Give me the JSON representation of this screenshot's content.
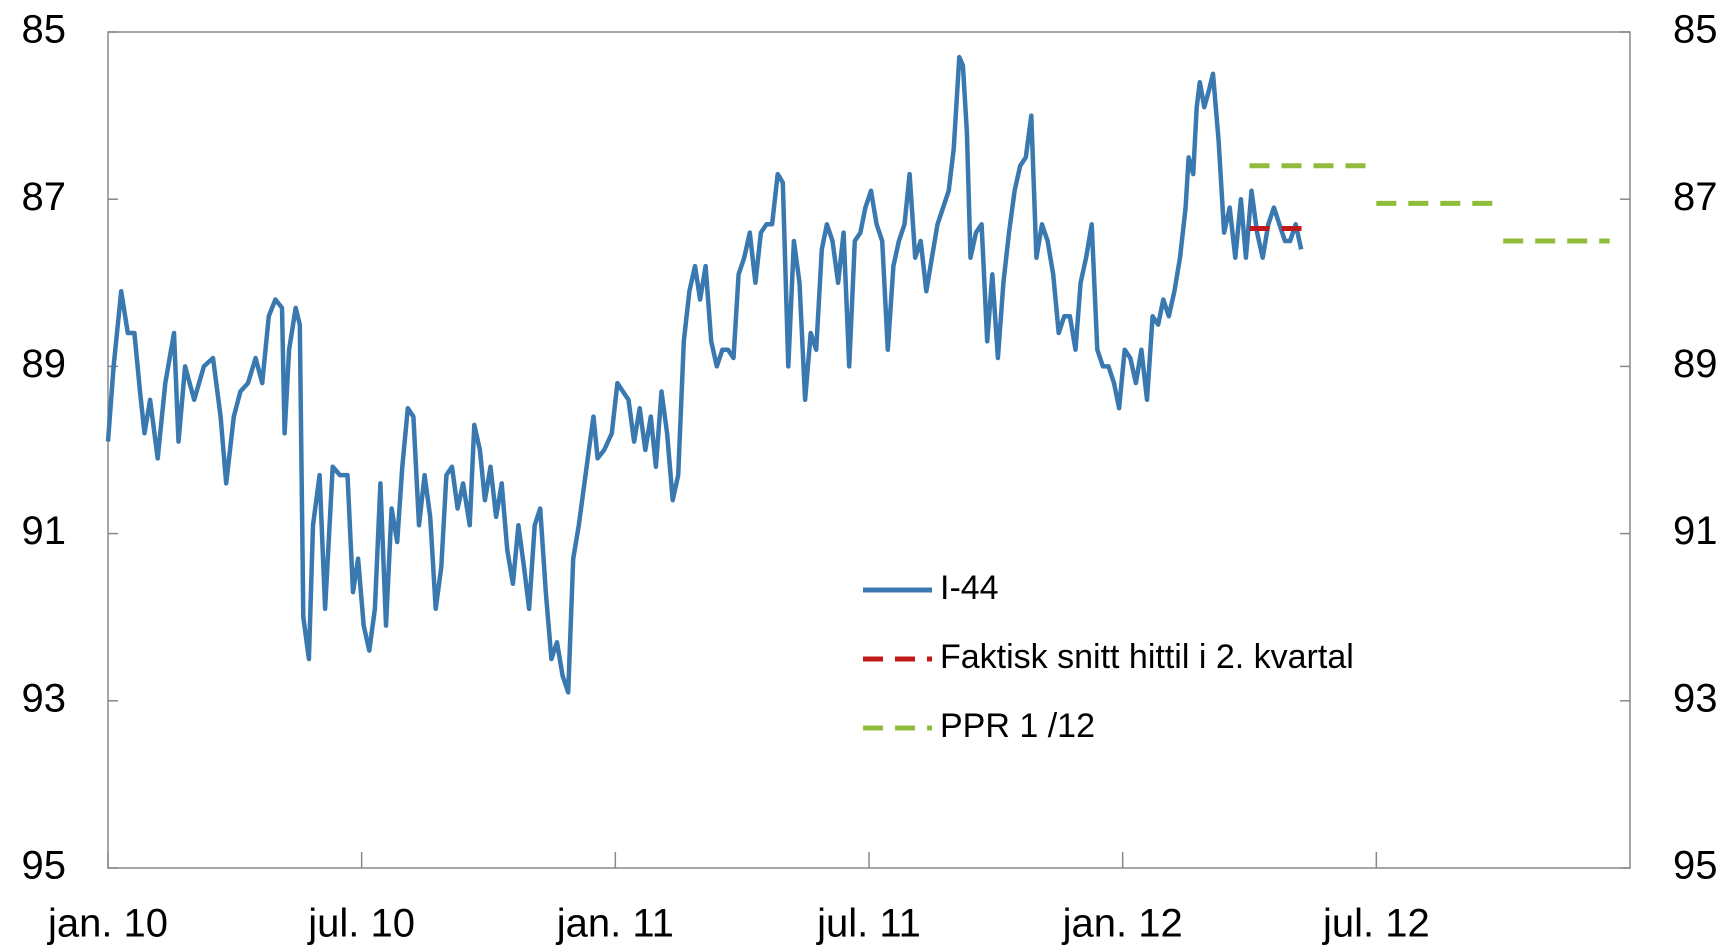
{
  "chart_data": {
    "type": "line",
    "xlim": [
      2010,
      2013
    ],
    "xticks": [
      {
        "value": 2010,
        "label": "jan. 10"
      },
      {
        "value": 2010.5,
        "label": "jul. 10"
      },
      {
        "value": 2011,
        "label": "jan. 11"
      },
      {
        "value": 2011.5,
        "label": "jul. 11"
      },
      {
        "value": 2012,
        "label": "jan. 12"
      },
      {
        "value": 2012.5,
        "label": "jul. 12"
      }
    ],
    "ylim": [
      85,
      95
    ],
    "y_inverted": true,
    "yticks": [
      85,
      87,
      89,
      91,
      93,
      95
    ],
    "y2lim": [
      85,
      95
    ],
    "y2ticks": [
      85,
      87,
      89,
      91,
      93,
      95
    ],
    "legend": "center",
    "series": [
      {
        "name": "I-44",
        "color": "#3a78b0",
        "style": "solid",
        "x": [
          2010.0,
          2010.011,
          2010.026,
          2010.039,
          2010.052,
          2010.063,
          2010.072,
          2010.083,
          2010.098,
          2010.113,
          2010.13,
          2010.139,
          2010.152,
          2010.17,
          2010.189,
          2010.207,
          2010.222,
          2010.233,
          2010.248,
          2010.261,
          2010.276,
          2010.291,
          2010.304,
          2010.317,
          2010.33,
          2010.343,
          2010.348,
          2010.357,
          2010.37,
          2010.378,
          2010.385,
          2010.396,
          2010.404,
          2010.417,
          2010.428,
          2010.443,
          2010.457,
          2010.472,
          2010.483,
          2010.493,
          2010.504,
          2010.515,
          2010.526,
          2010.537,
          2010.548,
          2010.559,
          2010.57,
          2010.58,
          2010.591,
          2010.602,
          2010.613,
          2010.624,
          2010.635,
          2010.646,
          2010.657,
          2010.667,
          2010.678,
          2010.689,
          2010.7,
          2010.713,
          2010.722,
          2010.733,
          2010.743,
          2010.754,
          2010.765,
          2010.776,
          2010.787,
          2010.798,
          2010.809,
          2010.82,
          2010.83,
          2010.841,
          2010.852,
          2010.863,
          2010.874,
          2010.885,
          2010.896,
          2010.907,
          2010.917,
          2010.928,
          2010.939,
          2010.95,
          2010.957,
          2010.965,
          2010.978,
          2010.993,
          2011.004,
          2011.015,
          2011.026,
          2011.037,
          2011.048,
          2011.059,
          2011.07,
          2011.08,
          2011.091,
          2011.102,
          2011.113,
          2011.124,
          2011.135,
          2011.146,
          2011.157,
          2011.167,
          2011.178,
          2011.189,
          2011.2,
          2011.211,
          2011.222,
          2011.233,
          2011.243,
          2011.254,
          2011.265,
          2011.276,
          2011.287,
          2011.298,
          2011.309,
          2011.32,
          2011.33,
          2011.341,
          2011.352,
          2011.363,
          2011.374,
          2011.385,
          2011.396,
          2011.407,
          2011.417,
          2011.428,
          2011.439,
          2011.45,
          2011.461,
          2011.472,
          2011.483,
          2011.493,
          2011.504,
          2011.515,
          2011.526,
          2011.537,
          2011.548,
          2011.559,
          2011.57,
          2011.58,
          2011.591,
          2011.602,
          2011.613,
          2011.624,
          2011.635,
          2011.646,
          2011.657,
          2011.667,
          2011.678,
          2011.685,
          2011.693,
          2011.7,
          2011.711,
          2011.722,
          2011.733,
          2011.743,
          2011.754,
          2011.765,
          2011.776,
          2011.787,
          2011.798,
          2011.809,
          2011.82,
          2011.83,
          2011.841,
          2011.852,
          2011.863,
          2011.874,
          2011.885,
          2011.896,
          2011.907,
          2011.917,
          2011.928,
          2011.939,
          2011.95,
          2011.961,
          2011.972,
          2011.983,
          2011.993,
          2012.004,
          2012.015,
          2012.026,
          2012.037,
          2012.048,
          2012.059,
          2012.07,
          2012.08,
          2012.091,
          2012.102,
          2012.113,
          2012.124,
          2012.13,
          2012.139,
          2012.146,
          2012.152,
          2012.161,
          2012.17,
          2012.178,
          2012.189,
          2012.2,
          2012.211,
          2012.222,
          2012.233,
          2012.243,
          2012.254,
          2012.265,
          2012.276,
          2012.287,
          2012.298,
          2012.309,
          2012.32,
          2012.33,
          2012.341,
          2012.352
        ],
        "values": [
          89.9,
          89.0,
          88.1,
          88.6,
          88.6,
          89.3,
          89.8,
          89.4,
          90.1,
          89.2,
          88.6,
          89.9,
          89.0,
          89.4,
          89.0,
          88.9,
          89.6,
          90.4,
          89.6,
          89.3,
          89.2,
          88.9,
          89.2,
          88.4,
          88.2,
          88.3,
          89.8,
          88.8,
          88.3,
          88.5,
          92.0,
          92.5,
          90.9,
          90.3,
          91.9,
          90.2,
          90.3,
          90.3,
          91.7,
          91.3,
          92.1,
          92.4,
          91.9,
          90.4,
          92.1,
          90.7,
          91.1,
          90.2,
          89.5,
          89.6,
          90.9,
          90.3,
          90.8,
          91.9,
          91.4,
          90.3,
          90.2,
          90.7,
          90.4,
          90.9,
          89.7,
          90.0,
          90.6,
          90.2,
          90.8,
          90.4,
          91.2,
          91.6,
          90.9,
          91.4,
          91.9,
          90.9,
          90.7,
          91.7,
          92.5,
          92.3,
          92.7,
          92.9,
          91.3,
          90.9,
          90.4,
          89.9,
          89.6,
          90.1,
          90.0,
          89.8,
          89.2,
          89.3,
          89.4,
          89.9,
          89.5,
          90.0,
          89.6,
          90.2,
          89.3,
          89.8,
          90.6,
          90.3,
          88.7,
          88.1,
          87.8,
          88.2,
          87.8,
          88.7,
          89.0,
          88.8,
          88.8,
          88.9,
          87.9,
          87.7,
          87.4,
          88.0,
          87.4,
          87.3,
          87.3,
          86.7,
          86.8,
          89.0,
          87.5,
          88.0,
          89.4,
          88.6,
          88.8,
          87.6,
          87.3,
          87.5,
          88.0,
          87.4,
          89.0,
          87.5,
          87.4,
          87.1,
          86.9,
          87.3,
          87.5,
          88.8,
          87.8,
          87.5,
          87.3,
          86.7,
          87.7,
          87.5,
          88.1,
          87.7,
          87.3,
          87.1,
          86.9,
          86.4,
          85.3,
          85.4,
          86.2,
          87.7,
          87.4,
          87.3,
          88.7,
          87.9,
          88.9,
          88.0,
          87.4,
          86.9,
          86.6,
          86.5,
          86.0,
          87.7,
          87.3,
          87.5,
          87.9,
          88.6,
          88.4,
          88.4,
          88.8,
          88.0,
          87.7,
          87.3,
          88.8,
          89.0,
          89.0,
          89.2,
          89.5,
          88.8,
          88.9,
          89.2,
          88.8,
          89.4,
          88.4,
          88.5,
          88.2,
          88.4,
          88.1,
          87.7,
          87.1,
          86.5,
          86.7,
          85.9,
          85.6,
          85.9,
          85.7,
          85.5,
          86.3,
          87.4,
          87.1,
          87.7,
          87.0,
          87.7,
          86.9,
          87.4,
          87.7,
          87.3,
          87.1,
          87.3,
          87.5,
          87.5,
          87.3,
          87.6
        ]
      },
      {
        "name": "Faktisk snitt hittil i 2. kvartal",
        "color": "#c0181b",
        "style": "dashed",
        "x": [
          2012.25,
          2012.357
        ],
        "values": [
          87.35,
          87.35
        ]
      },
      {
        "name": "PPR 1 /12",
        "color": "#8fbc3a",
        "style": "dashed",
        "x": [
          2012.25,
          2012.5,
          2012.5,
          2012.5,
          2012.75,
          2012.75,
          2012.75,
          2012.96
        ],
        "values": [
          86.6,
          86.6,
          null,
          87.05,
          87.05,
          null,
          87.5,
          87.5
        ]
      }
    ]
  }
}
